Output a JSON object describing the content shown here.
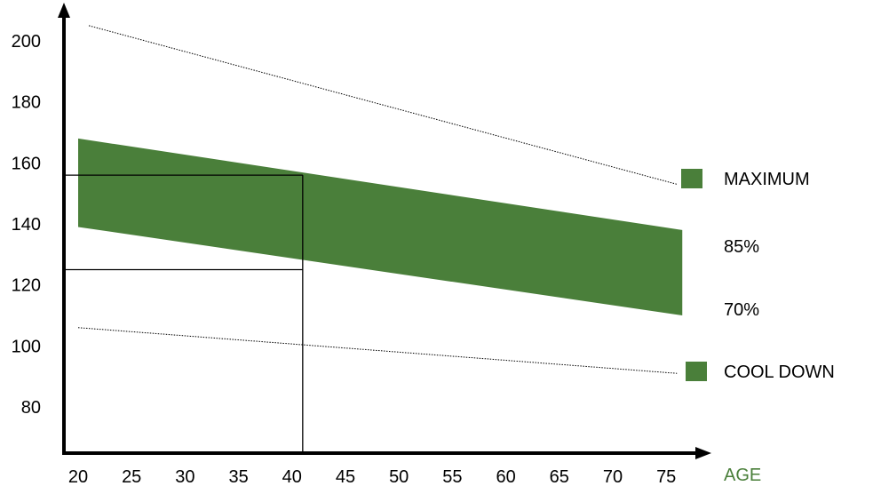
{
  "chart_data": {
    "type": "area",
    "title": "",
    "xlabel": "AGE",
    "ylabel": "",
    "x_ticks": [
      "20",
      "25",
      "30",
      "35",
      "40",
      "45",
      "50",
      "55",
      "60",
      "65",
      "70",
      "75"
    ],
    "y_ticks": [
      "80",
      "100",
      "120",
      "140",
      "160",
      "180",
      "200"
    ],
    "xlim": [
      20,
      77
    ],
    "ylim": [
      65,
      216
    ],
    "grid": false,
    "series": [
      {
        "name": "MAXIMUM",
        "style": "dotted-line",
        "x": [
          21,
          76
        ],
        "y": [
          205,
          153
        ]
      },
      {
        "name": "85%",
        "style": "band-upper",
        "x": [
          20,
          76.5
        ],
        "y": [
          168,
          138
        ]
      },
      {
        "name": "70%",
        "style": "band-lower",
        "x": [
          20,
          76.5
        ],
        "y": [
          139,
          110
        ]
      },
      {
        "name": "COOL DOWN",
        "style": "dotted-line",
        "x": [
          20,
          76
        ],
        "y": [
          106,
          91
        ]
      }
    ],
    "band": {
      "from": "70%",
      "to": "85%",
      "color": "#4a7f3a"
    },
    "reference_lines": {
      "x": 41,
      "y_values": [
        156,
        125
      ]
    },
    "legend": [
      {
        "label": "MAXIMUM",
        "swatch": true
      },
      {
        "label": "85%",
        "swatch": false
      },
      {
        "label": "70%",
        "swatch": false
      },
      {
        "label": "COOL DOWN",
        "swatch": true
      }
    ],
    "colors": {
      "band": "#4a7f3a",
      "swatch": "#4a7f3a",
      "axis": "#000000",
      "xlabel": "#4a7f3a"
    }
  }
}
